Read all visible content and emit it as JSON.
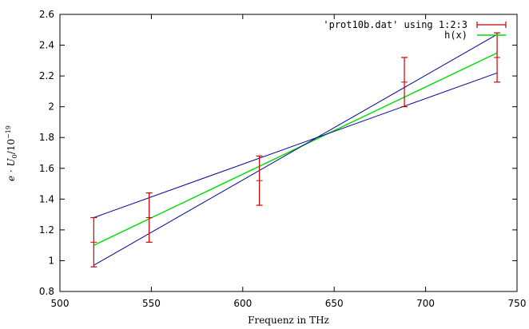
{
  "chart_data": {
    "type": "line",
    "title": "",
    "xlabel": "Frequenz in THz",
    "ylabel_var": "e · U",
    "ylabel_sub": "0",
    "ylabel_unit": "/10",
    "ylabel_exp": "−19",
    "xlim": [
      500,
      750
    ],
    "ylim": [
      0.8,
      2.6
    ],
    "x_ticks": [
      500,
      550,
      600,
      650,
      700,
      750
    ],
    "y_ticks": [
      0.8,
      1,
      1.2,
      1.4,
      1.6,
      1.8,
      2,
      2.2,
      2.4,
      2.6
    ],
    "x_tick_labels": [
      "500",
      "550",
      "600",
      "650",
      "700",
      "750"
    ],
    "y_tick_labels": [
      "0.8",
      "1",
      "1.2",
      "1.4",
      "1.6",
      "1.8",
      "2",
      "2.2",
      "2.4",
      "2.6"
    ],
    "grid": false,
    "legend_position": "top-right",
    "series": [
      {
        "name": "'prot10b.dat' using 1:2:3",
        "kind": "errorbars",
        "color": "#cc0000",
        "x": [
          518.5,
          548.8,
          609.1,
          688.4,
          739.1
        ],
        "y": [
          1.12,
          1.28,
          1.52,
          2.16,
          2.32
        ],
        "yerr": [
          0.16,
          0.16,
          0.16,
          0.16,
          0.16
        ]
      },
      {
        "name": "h(x)",
        "kind": "line",
        "color": "#00dd00",
        "x": [
          518.5,
          739.1
        ],
        "y": [
          1.1,
          2.35
        ]
      },
      {
        "kind": "line",
        "color": "#000099",
        "x": [
          518.5,
          739.1
        ],
        "y": [
          0.97,
          2.47
        ]
      },
      {
        "kind": "line",
        "color": "#000099",
        "x": [
          518.5,
          739.1
        ],
        "y": [
          1.28,
          2.22
        ]
      }
    ]
  }
}
